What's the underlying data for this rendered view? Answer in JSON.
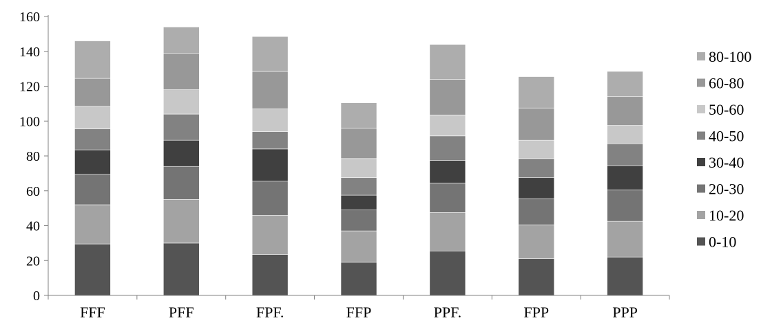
{
  "chart_data": {
    "type": "bar",
    "stacked": true,
    "title": "",
    "xlabel": "",
    "ylabel": "",
    "ylim": [
      0,
      160
    ],
    "y_ticks": [
      "0",
      "20",
      "40",
      "60",
      "80",
      "100",
      "120",
      "140",
      "160"
    ],
    "grid": false,
    "legend_position": "right",
    "categories": [
      "FFF",
      "PFF",
      "FPF.",
      "FFP",
      "PPF.",
      "FPP",
      "PPP"
    ],
    "series": [
      {
        "name": "0-10",
        "color": "#545454",
        "values": [
          29.5,
          30.0,
          23.5,
          19.0,
          25.5,
          21.0,
          22.0
        ]
      },
      {
        "name": "10-20",
        "color": "#a3a3a3",
        "values": [
          22.5,
          25.0,
          22.5,
          18.0,
          22.0,
          19.5,
          20.5
        ]
      },
      {
        "name": "20-30",
        "color": "#747474",
        "values": [
          17.5,
          19.0,
          19.5,
          12.0,
          17.0,
          15.0,
          18.0
        ]
      },
      {
        "name": "30-40",
        "color": "#404040",
        "values": [
          14.0,
          15.0,
          18.5,
          8.5,
          13.0,
          12.0,
          14.0
        ]
      },
      {
        "name": "40-50",
        "color": "#828282",
        "values": [
          12.0,
          15.0,
          10.0,
          10.0,
          14.0,
          11.0,
          12.5
        ]
      },
      {
        "name": "50-60",
        "color": "#c8c8c8",
        "values": [
          13.0,
          14.0,
          13.0,
          11.0,
          12.0,
          10.5,
          10.5
        ]
      },
      {
        "name": "60-80",
        "color": "#989898",
        "values": [
          16.0,
          21.0,
          21.5,
          17.5,
          20.5,
          18.5,
          16.5
        ]
      },
      {
        "name": "80-100",
        "color": "#adadad",
        "values": [
          21.5,
          15.0,
          20.0,
          14.5,
          20.0,
          18.0,
          14.5
        ]
      }
    ]
  }
}
